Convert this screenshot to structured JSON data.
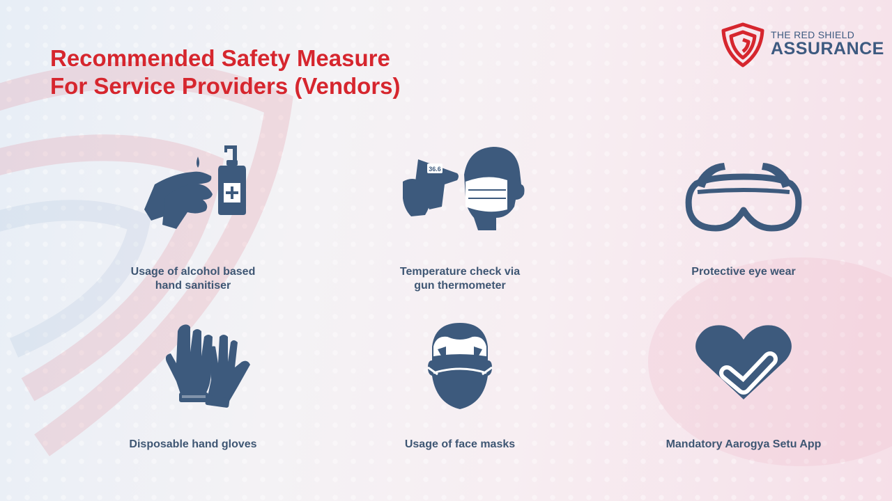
{
  "title": {
    "line1": "Recommended Safety Measure",
    "line2": "For Service Providers (Vendors)"
  },
  "logo": {
    "small": "THE RED SHIELD",
    "big": "ASSURANCE",
    "icon": "shield-icon"
  },
  "colors": {
    "accent": "#d6262e",
    "icon": "#3d5a7d",
    "text": "#3e5673"
  },
  "items": [
    {
      "label": "Usage of alcohol based\nhand sanitiser",
      "icon": "hand-sanitiser-icon"
    },
    {
      "label": "Temperature check via\ngun thermometer",
      "icon": "thermometer-gun-icon"
    },
    {
      "label": "Protective eye wear",
      "icon": "goggles-icon"
    },
    {
      "label": "Disposable hand gloves",
      "icon": "gloves-icon"
    },
    {
      "label": "Usage of face masks",
      "icon": "face-mask-icon"
    },
    {
      "label": "Mandatory Aarogya Setu App",
      "icon": "heart-check-icon"
    }
  ],
  "thermometer_reading": "36.6"
}
